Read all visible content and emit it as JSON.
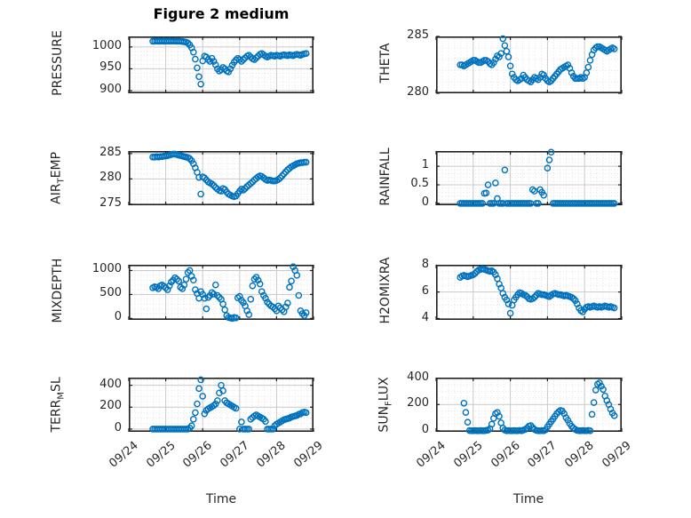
{
  "title": "Figure 2 medium",
  "style": {
    "marker_color": "#0072BD",
    "text_color": "#262626",
    "frame_color": "#1f1f1f",
    "major_grid_color": "#c9c9c9",
    "minor_grid_color": "#dcdcdc",
    "background": "#ffffff"
  },
  "x_axis": {
    "label": "Time",
    "tick_labels": [
      "09/24",
      "09/25",
      "09/26",
      "09/27",
      "09/28",
      "09/29"
    ],
    "range": [
      0,
      5
    ],
    "major_step": 1,
    "minor_step": 0.16667
  },
  "chart_data": [
    {
      "id": "pressure",
      "type": "scatter",
      "ylabel": "PRESSURE",
      "ylabel_parts": [
        {
          "t": "PRESSURE"
        }
      ],
      "ylim": [
        894,
        1024
      ],
      "yminor": 10,
      "yticks": {
        "values": [
          900,
          950,
          1000
        ],
        "labels": [
          "900",
          "950",
          "1000"
        ]
      },
      "x0": 0.65,
      "dx": 0.05,
      "y": [
        1013,
        1013.2,
        1013.5,
        1013,
        1013.3,
        1013.5,
        1013,
        1013.2,
        1013.5,
        1013.1,
        1013.3,
        1013.4,
        1013.1,
        1013,
        1013.2,
        1012.8,
        1012.4,
        1011.8,
        1011,
        1009,
        1004.5,
        998,
        988,
        972,
        952,
        932,
        915,
        968,
        979,
        977,
        971,
        967,
        974,
        967,
        959,
        950,
        945,
        948,
        953,
        950,
        945,
        943,
        950,
        958,
        965,
        970,
        974,
        971,
        967,
        971,
        975,
        979,
        981,
        977,
        973,
        971,
        975,
        979,
        983,
        985,
        982,
        979,
        977,
        979,
        981,
        980,
        979,
        981,
        980,
        979,
        981,
        982,
        981,
        980,
        982,
        981,
        980,
        982,
        983,
        982,
        981,
        983,
        984,
        985
      ]
    },
    {
      "id": "theta",
      "type": "scatter",
      "ylabel": "THETA",
      "ylabel_parts": [
        {
          "t": "THETA"
        }
      ],
      "ylim": [
        280,
        285
      ],
      "yminor": 1,
      "yticks": {
        "values": [
          280,
          285
        ],
        "labels": [
          "280",
          "285"
        ]
      },
      "x0": 0.65,
      "dx": 0.05,
      "y": [
        282.5,
        282.5,
        282.4,
        282.5,
        282.6,
        282.7,
        282.8,
        282.9,
        282.9,
        282.8,
        282.7,
        282.7,
        282.8,
        282.9,
        282.9,
        282.8,
        282.6,
        282.5,
        282.7,
        283.0,
        283.3,
        283.2,
        283.5,
        284.8,
        284.2,
        283.7,
        283.2,
        282.4,
        281.7,
        281.4,
        281.2,
        281.1,
        281.2,
        281.3,
        281.6,
        281.4,
        281.2,
        281.1,
        281.0,
        281.2,
        281.4,
        281.3,
        281.2,
        281.4,
        281.7,
        281.6,
        281.3,
        281.1,
        281.0,
        281.1,
        281.3,
        281.5,
        281.7,
        281.9,
        282.1,
        282.2,
        282.3,
        282.4,
        282.5,
        282.2,
        281.8,
        281.5,
        281.3,
        281.3,
        281.3,
        281.4,
        281.3,
        281.4,
        281.8,
        282.3,
        282.9,
        283.4,
        283.8,
        284.0,
        284.1,
        284.1,
        284.0,
        283.9,
        283.8,
        283.7,
        283.8,
        283.9,
        284.0,
        283.9
      ]
    },
    {
      "id": "airtemp",
      "type": "scatter",
      "ylabel": "AIR_TEMP",
      "ylabel_parts": [
        {
          "t": "AIR"
        },
        {
          "t": "T",
          "sub": true
        },
        {
          "t": "EMP"
        }
      ],
      "ylim": [
        274.8,
        285.5
      ],
      "yminor": 1,
      "yticks": {
        "values": [
          275,
          280,
          285
        ],
        "labels": [
          "275",
          "280",
          "285"
        ]
      },
      "x0": 0.65,
      "dx": 0.05,
      "y": [
        284.3,
        284.3,
        284.4,
        284.3,
        284.4,
        284.4,
        284.5,
        284.5,
        284.6,
        284.7,
        284.8,
        284.9,
        284.9,
        284.8,
        284.7,
        284.6,
        284.5,
        284.4,
        284.3,
        284.2,
        284.0,
        283.6,
        283.0,
        282.2,
        281.3,
        280.3,
        277.0,
        280.4,
        280.2,
        279.8,
        279.4,
        279.2,
        279.0,
        278.7,
        278.3,
        278.0,
        277.7,
        277.6,
        278.1,
        277.9,
        277.4,
        277.0,
        276.8,
        276.6,
        276.5,
        276.6,
        277.1,
        277.6,
        278.0,
        277.8,
        278.1,
        278.5,
        278.8,
        279.1,
        279.4,
        279.8,
        280.1,
        280.4,
        280.6,
        280.5,
        280.2,
        279.9,
        279.7,
        279.8,
        279.7,
        279.6,
        279.6,
        279.7,
        279.9,
        280.2,
        280.6,
        281.0,
        281.4,
        281.8,
        282.1,
        282.4,
        282.6,
        282.8,
        283.0,
        283.1,
        283.2,
        283.2,
        283.3,
        283.3
      ]
    },
    {
      "id": "rainfall",
      "type": "scatter",
      "ylabel": "RAINFALL",
      "ylabel_parts": [
        {
          "t": "RAINFALL"
        }
      ],
      "ylim": [
        -0.05,
        1.41
      ],
      "yminor": 0.1,
      "yticks": {
        "values": [
          0,
          0.5,
          1
        ],
        "labels": [
          "0",
          "0.5",
          "1"
        ]
      },
      "x0": 0.65,
      "dx": 0.05,
      "y": [
        0,
        0,
        0,
        0,
        0,
        0,
        0,
        0,
        0,
        0,
        0,
        0,
        0,
        0.27,
        0.28,
        0.5,
        0,
        0,
        0,
        0.55,
        0.13,
        0,
        0,
        0,
        0.9,
        0,
        0,
        0,
        0,
        0,
        0,
        0,
        0,
        0,
        0,
        0,
        0,
        0,
        0,
        0.37,
        0.33,
        0,
        0,
        0.37,
        0.3,
        0.22,
        null,
        0.95,
        1.17,
        1.38,
        0,
        0,
        0,
        0,
        0,
        0,
        0,
        0,
        0,
        0,
        0,
        0,
        0,
        0,
        0,
        0,
        0,
        0,
        0,
        0,
        0,
        0,
        0,
        0,
        0,
        0,
        0,
        0,
        0,
        0,
        0,
        0,
        0,
        0
      ]
    },
    {
      "id": "mixdepth",
      "type": "scatter",
      "ylabel": "MIXDEPTH",
      "ylabel_parts": [
        {
          "t": "MIXDEPTH"
        }
      ],
      "ylim": [
        -30,
        1120
      ],
      "yminor": 100,
      "yticks": {
        "values": [
          0,
          500,
          1000
        ],
        "labels": [
          "0",
          "500",
          "1000"
        ]
      },
      "x0": 0.65,
      "dx": 0.05,
      "y": [
        640,
        660,
        650,
        620,
        680,
        700,
        670,
        640,
        600,
        680,
        760,
        800,
        850,
        820,
        780,
        650,
        620,
        700,
        820,
        960,
        1000,
        880,
        800,
        600,
        520,
        420,
        560,
        500,
        420,
        200,
        440,
        480,
        540,
        510,
        700,
        480,
        440,
        400,
        300,
        180,
        60,
        20,
        10,
        0,
        20,
        10,
        430,
        460,
        380,
        330,
        260,
        160,
        80,
        400,
        680,
        820,
        860,
        800,
        720,
        560,
        480,
        420,
        340,
        300,
        260,
        240,
        200,
        160,
        260,
        220,
        180,
        140,
        240,
        320,
        650,
        780,
        1080,
        1000,
        900,
        480,
        160,
        100,
        60,
        120
      ]
    },
    {
      "id": "h2omixra",
      "type": "scatter",
      "ylabel": "H2OMIXRA",
      "ylabel_parts": [
        {
          "t": "H2OMIXRA"
        }
      ],
      "ylim": [
        3.9,
        8.05
      ],
      "yminor": 0.5,
      "yticks": {
        "values": [
          4,
          6,
          8
        ],
        "labels": [
          "4",
          "6",
          "8"
        ]
      },
      "x0": 0.65,
      "dx": 0.05,
      "y": [
        7.1,
        7.2,
        7.25,
        7.2,
        7.15,
        7.2,
        7.25,
        7.3,
        7.4,
        7.55,
        7.65,
        7.7,
        7.75,
        7.7,
        7.65,
        7.6,
        7.55,
        7.6,
        7.5,
        7.3,
        7.0,
        6.6,
        6.3,
        5.9,
        5.6,
        5.4,
        5.1,
        4.4,
        5.0,
        5.4,
        5.6,
        5.8,
        5.95,
        5.9,
        5.8,
        5.75,
        5.65,
        5.5,
        5.45,
        5.5,
        5.6,
        5.75,
        5.9,
        5.85,
        5.8,
        5.8,
        5.75,
        5.7,
        5.65,
        5.75,
        5.85,
        5.9,
        5.85,
        5.8,
        5.8,
        5.75,
        5.7,
        5.75,
        5.7,
        5.65,
        5.6,
        5.5,
        5.35,
        5.1,
        4.8,
        4.6,
        4.5,
        4.7,
        4.85,
        4.9,
        4.85,
        4.9,
        4.95,
        4.9,
        4.85,
        4.9,
        4.85,
        4.9,
        4.95,
        4.9,
        4.85,
        4.9,
        4.85,
        4.8
      ]
    },
    {
      "id": "terrmsl",
      "type": "scatter",
      "ylabel": "TERR_MSL",
      "ylabel_parts": [
        {
          "t": "TERR"
        },
        {
          "t": "M",
          "sub": true
        },
        {
          "t": "SL"
        }
      ],
      "ylim": [
        -25,
        470
      ],
      "yminor": 50,
      "yticks": {
        "values": [
          0,
          200,
          400
        ],
        "labels": [
          "0",
          "200",
          "400"
        ]
      },
      "x0": 0.65,
      "dx": 0.05,
      "y": [
        0,
        0,
        0,
        0,
        0,
        0,
        0,
        0,
        0,
        0,
        0,
        0,
        0,
        0,
        0,
        0,
        0,
        0,
        0,
        0,
        10,
        30,
        90,
        150,
        230,
        370,
        450,
        300,
        140,
        170,
        185,
        195,
        205,
        215,
        230,
        260,
        330,
        400,
        350,
        260,
        240,
        230,
        220,
        210,
        200,
        190,
        null,
        0,
        65,
        0,
        0,
        0,
        0,
        90,
        105,
        120,
        130,
        120,
        110,
        100,
        90,
        70,
        0,
        0,
        0,
        0,
        30,
        45,
        55,
        65,
        75,
        85,
        90,
        95,
        100,
        110,
        115,
        120,
        125,
        135,
        140,
        150,
        155,
        150
      ]
    },
    {
      "id": "sunflux",
      "type": "scatter",
      "ylabel": "SUN_FLUX",
      "ylabel_parts": [
        {
          "t": "SUN"
        },
        {
          "t": "F",
          "sub": true
        },
        {
          "t": "LUX"
        }
      ],
      "ylim": [
        -8,
        405
      ],
      "yminor": 50,
      "yticks": {
        "values": [
          0,
          200,
          400
        ],
        "labels": [
          "0",
          "200",
          "400"
        ]
      },
      "x0": 0.75,
      "dx": 0.05,
      "y": [
        210,
        140,
        65,
        2,
        0,
        0,
        2,
        0,
        0,
        2,
        0,
        0,
        3,
        5,
        15,
        50,
        95,
        130,
        140,
        110,
        60,
        20,
        5,
        0,
        2,
        0,
        0,
        2,
        0,
        0,
        3,
        0,
        5,
        10,
        20,
        35,
        40,
        25,
        10,
        3,
        0,
        0,
        2,
        0,
        8,
        30,
        50,
        70,
        90,
        110,
        130,
        145,
        155,
        150,
        130,
        100,
        80,
        55,
        35,
        20,
        10,
        3,
        0,
        0,
        2,
        0,
        0,
        3,
        0,
        125,
        215,
        310,
        355,
        365,
        340,
        315,
        265,
        230,
        200,
        165,
        135,
        115
      ]
    }
  ]
}
